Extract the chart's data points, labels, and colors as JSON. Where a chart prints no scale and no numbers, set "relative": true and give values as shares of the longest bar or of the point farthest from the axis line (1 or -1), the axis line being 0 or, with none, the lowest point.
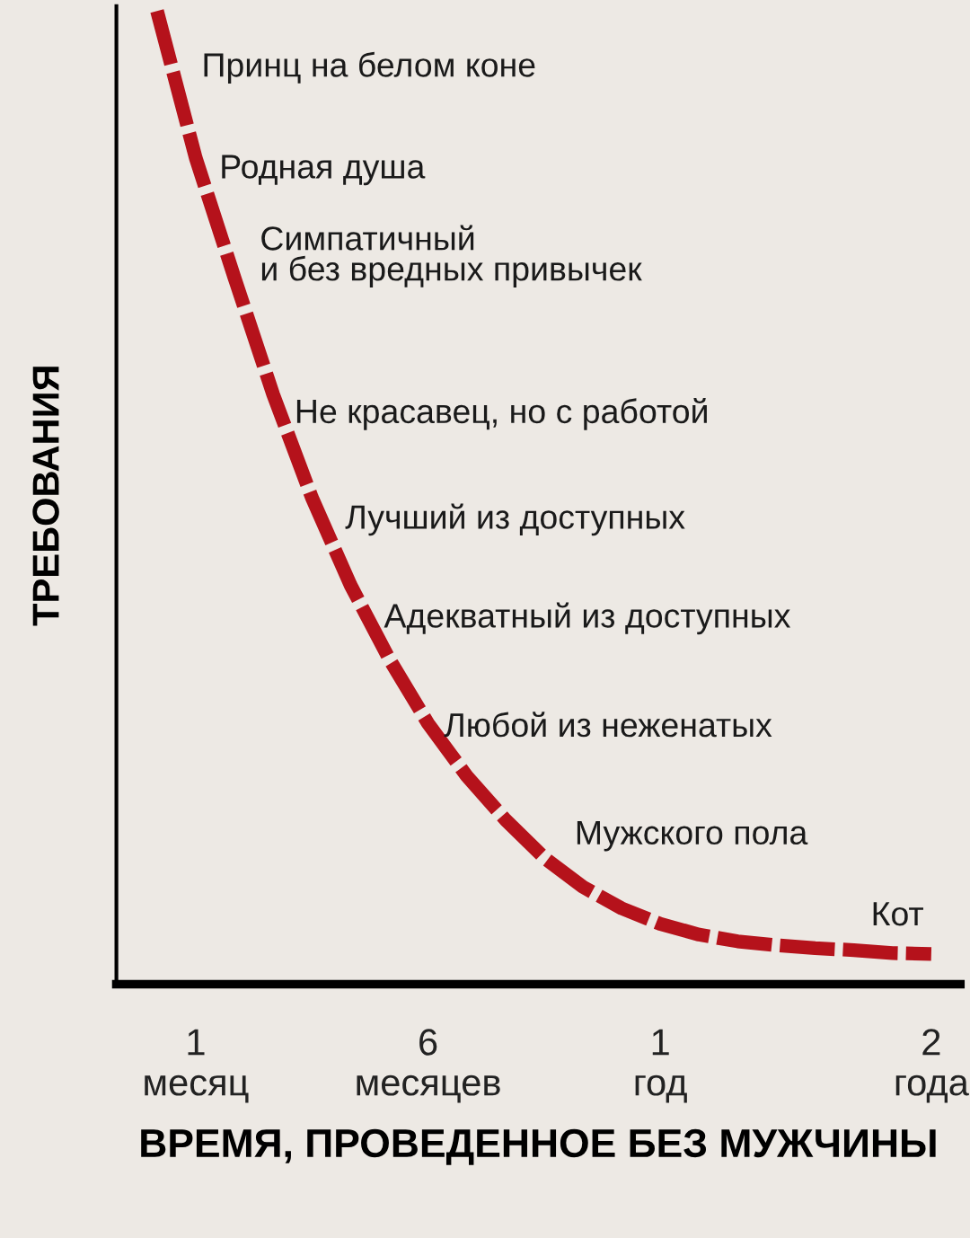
{
  "chart_data": {
    "type": "line",
    "relative": true,
    "xlabel": "ВРЕМЯ, ПРОВЕДЕННОЕ БЕЗ МУЖЧИНЫ",
    "ylabel": "ТРЕБОВАНИЯ",
    "categories": [
      null,
      "1\nмесяц",
      null,
      null,
      null,
      null,
      null,
      "6\nмесяцев",
      null,
      null,
      null,
      null,
      null,
      "1\nгод",
      null,
      null,
      null,
      null,
      null,
      null,
      "2\nгода"
    ],
    "series": [
      {
        "color": "#b5121b",
        "values": [
          1.0,
          0.849,
          0.726,
          0.606,
          0.5,
          0.41,
          0.334,
          0.268,
          0.214,
          0.169,
          0.13,
          0.1,
          0.078,
          0.062,
          0.051,
          0.044,
          0.04,
          0.037,
          0.035,
          0.032,
          0.031
        ]
      }
    ],
    "line_style": "dashed",
    "annotations": [
      "Принц на белом коне",
      "Родная душа",
      "Симпатичный\nи без вредных привычек",
      "Не красавец, но с работой",
      "Лучший из доступных",
      "Адекватный из доступных",
      "Любой из неженатых",
      "Мужского пола",
      "Кот"
    ]
  }
}
